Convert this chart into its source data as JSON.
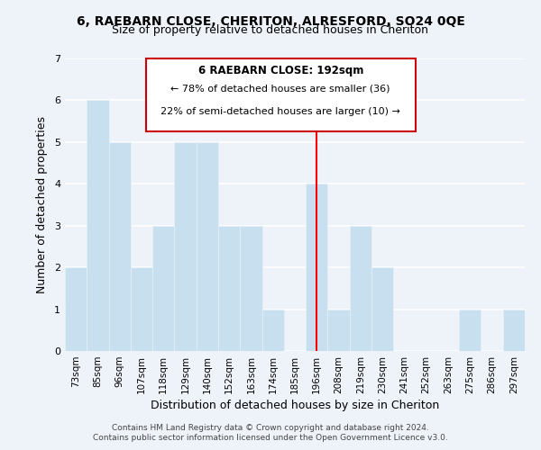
{
  "title": "6, RAEBARN CLOSE, CHERITON, ALRESFORD, SO24 0QE",
  "subtitle": "Size of property relative to detached houses in Cheriton",
  "xlabel": "Distribution of detached houses by size in Cheriton",
  "ylabel": "Number of detached properties",
  "bar_labels": [
    "73sqm",
    "85sqm",
    "96sqm",
    "107sqm",
    "118sqm",
    "129sqm",
    "140sqm",
    "152sqm",
    "163sqm",
    "174sqm",
    "185sqm",
    "196sqm",
    "208sqm",
    "219sqm",
    "230sqm",
    "241sqm",
    "252sqm",
    "263sqm",
    "275sqm",
    "286sqm",
    "297sqm"
  ],
  "bar_values": [
    2,
    6,
    5,
    2,
    3,
    5,
    5,
    3,
    3,
    1,
    0,
    4,
    1,
    3,
    2,
    0,
    0,
    0,
    1,
    0,
    1
  ],
  "bar_color": "#c8dff0",
  "bar_edge_color": "#e8f0f8",
  "red_line_index": 11,
  "ylim": [
    0,
    7
  ],
  "yticks": [
    0,
    1,
    2,
    3,
    4,
    5,
    6,
    7
  ],
  "annotation_title": "6 RAEBARN CLOSE: 192sqm",
  "annotation_line1": "← 78% of detached houses are smaller (36)",
  "annotation_line2": "22% of semi-detached houses are larger (10) →",
  "footer1": "Contains HM Land Registry data © Crown copyright and database right 2024.",
  "footer2": "Contains public sector information licensed under the Open Government Licence v3.0.",
  "background_color": "#eef3f9",
  "grid_color": "#ffffff",
  "annotation_box_color": "#ffffff",
  "annotation_box_edge": "#cc0000"
}
